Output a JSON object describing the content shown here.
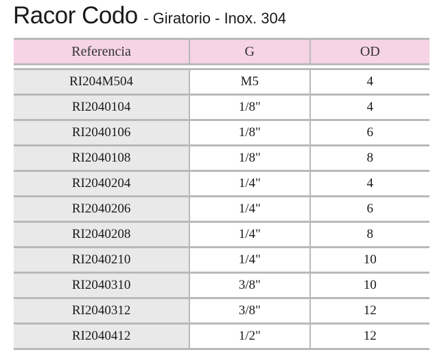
{
  "title": {
    "main": "Racor Codo",
    "sub": "- Giratorio - Inox. 304"
  },
  "table": {
    "headers": [
      "Referencia",
      "G",
      "OD"
    ],
    "rows": [
      [
        "RI204M504",
        "M5",
        "4"
      ],
      [
        "RI2040104",
        "1/8\"",
        "4"
      ],
      [
        "RI2040106",
        "1/8\"",
        "6"
      ],
      [
        "RI2040108",
        "1/8\"",
        "8"
      ],
      [
        "RI2040204",
        "1/4\"",
        "4"
      ],
      [
        "RI2040206",
        "1/4\"",
        "6"
      ],
      [
        "RI2040208",
        "1/4\"",
        "8"
      ],
      [
        "RI2040210",
        "1/4\"",
        "10"
      ],
      [
        "RI2040310",
        "3/8\"",
        "10"
      ],
      [
        "RI2040312",
        "3/8\"",
        "12"
      ],
      [
        "RI2040412",
        "1/2\"",
        "12"
      ]
    ]
  },
  "colors": {
    "header_background": "#f6d3e5",
    "reference_column_background": "#e9e9ea",
    "rule_color": "#b9b9b9"
  }
}
